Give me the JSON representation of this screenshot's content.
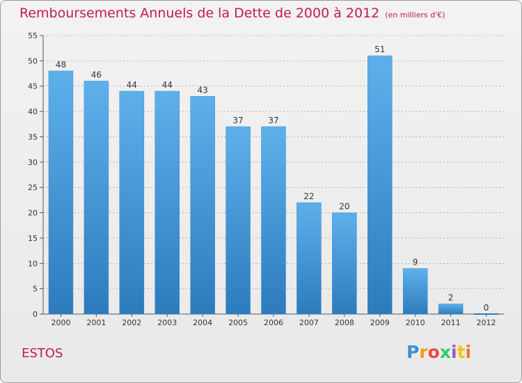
{
  "title": "Remboursements Annuels de la Dette de 2000 à 2012",
  "unit": "(en milliers d'€)",
  "commune": "ESTOS",
  "logo": {
    "text": "Proxiti"
  },
  "colors": {
    "title": "#c2185b",
    "bar_top": "#5eb0ea",
    "bar_bottom": "#2d7bbd",
    "axis": "#555555",
    "grid": "#888888"
  },
  "chart_data": {
    "type": "bar",
    "categories": [
      "2000",
      "2001",
      "2002",
      "2003",
      "2004",
      "2005",
      "2006",
      "2007",
      "2008",
      "2009",
      "2010",
      "2011",
      "2012"
    ],
    "values": [
      48,
      46,
      44,
      44,
      43,
      37,
      37,
      22,
      20,
      51,
      9,
      2,
      0
    ],
    "title": "Remboursements Annuels de la Dette de 2000 à 2012",
    "ylim": [
      0,
      55
    ],
    "yticks": [
      0,
      5,
      10,
      15,
      20,
      25,
      30,
      35,
      40,
      45,
      50,
      55
    ],
    "grid": "horizontal dashed",
    "legend": "none"
  }
}
